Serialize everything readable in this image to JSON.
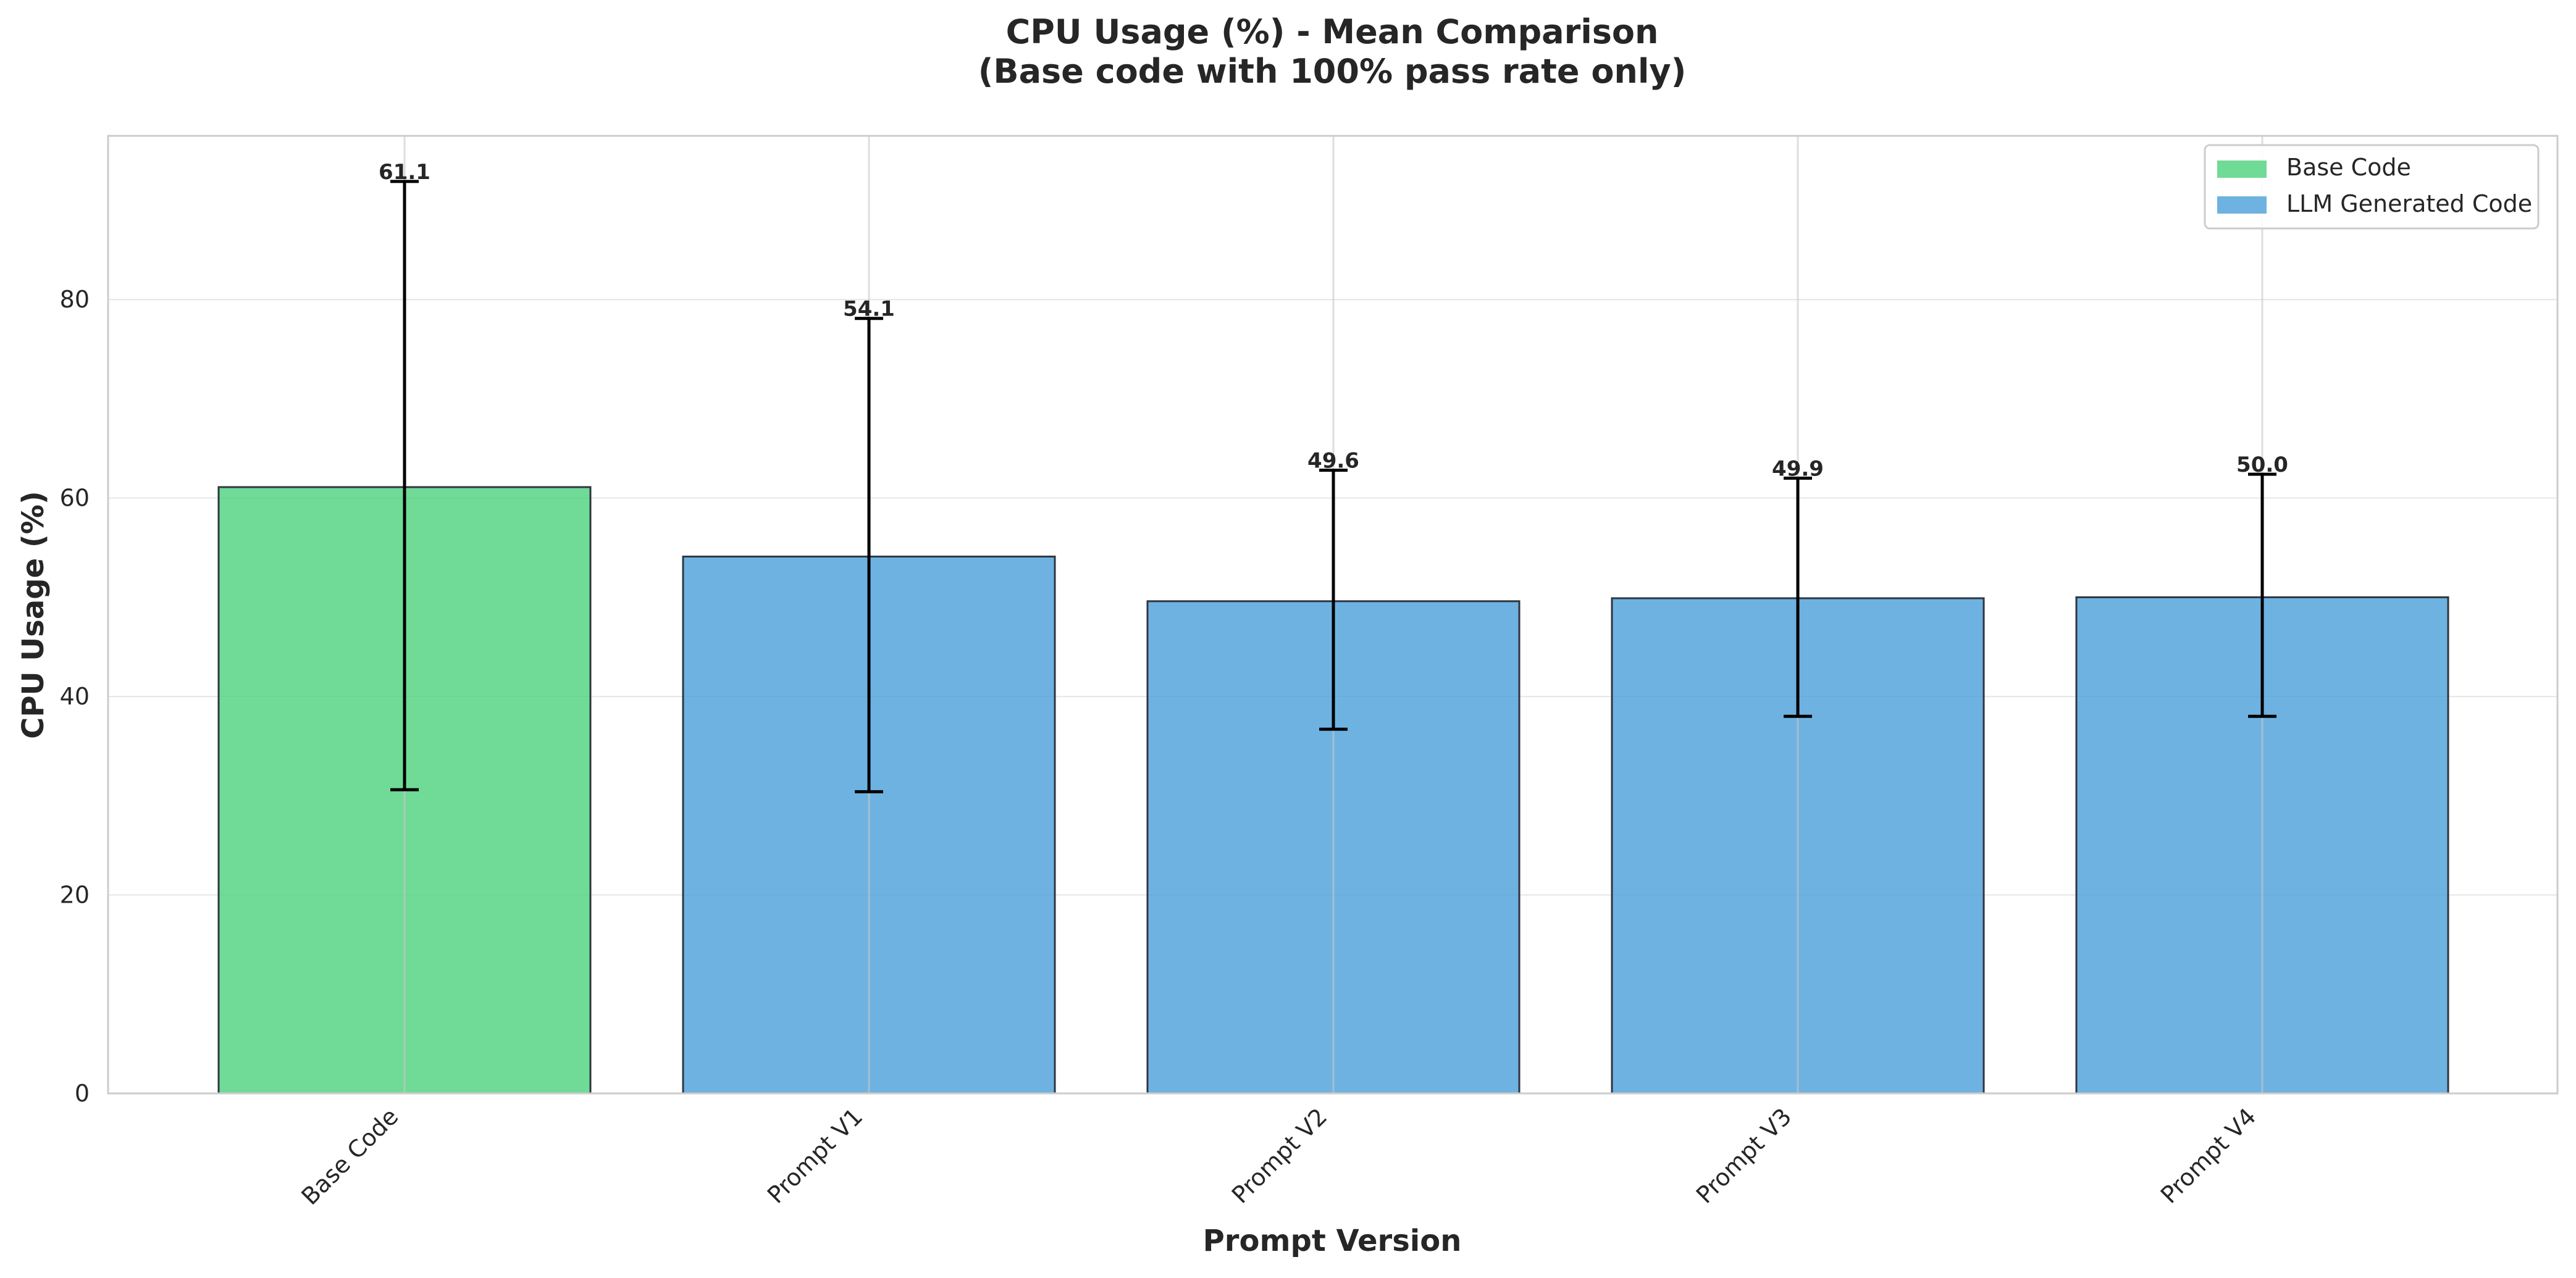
{
  "chart_data": {
    "type": "bar",
    "title_line1": "CPU Usage (%) - Mean Comparison",
    "title_line2": "(Base code with 100% pass rate only)",
    "xlabel": "Prompt Version",
    "ylabel": "CPU Usage (%)",
    "categories": [
      "Base Code",
      "Prompt V1",
      "Prompt V2",
      "Prompt V3",
      "Prompt V4"
    ],
    "values": [
      61.1,
      54.1,
      49.6,
      49.9,
      50.0
    ],
    "value_labels": [
      "61.1",
      "54.1",
      "49.6",
      "49.9",
      "50.0"
    ],
    "error_low": [
      30.6,
      30.4,
      36.7,
      38.0,
      38.0
    ],
    "error_high": [
      91.9,
      78.1,
      62.8,
      62.0,
      62.4
    ],
    "bar_groups": [
      "base",
      "llm",
      "llm",
      "llm",
      "llm"
    ],
    "ylim": [
      0,
      96.5
    ],
    "yticks": [
      0,
      20,
      40,
      60,
      80
    ],
    "ytick_labels": [
      "0",
      "20",
      "40",
      "60",
      "80"
    ],
    "grid": true,
    "legend_position": "top-right",
    "legend": [
      {
        "key": "base",
        "label": "Base Code",
        "color": "#4cd17d"
      },
      {
        "key": "llm",
        "label": "LLM Generated Code",
        "color": "#4a9fda"
      }
    ],
    "colors": {
      "base": "#4cd17d",
      "llm": "#4a9fda",
      "bar_edge": "#2f3640",
      "errorbar": "#000000",
      "grid": "#e6e6e6",
      "axes": "#cccccc",
      "text": "#262626"
    }
  }
}
